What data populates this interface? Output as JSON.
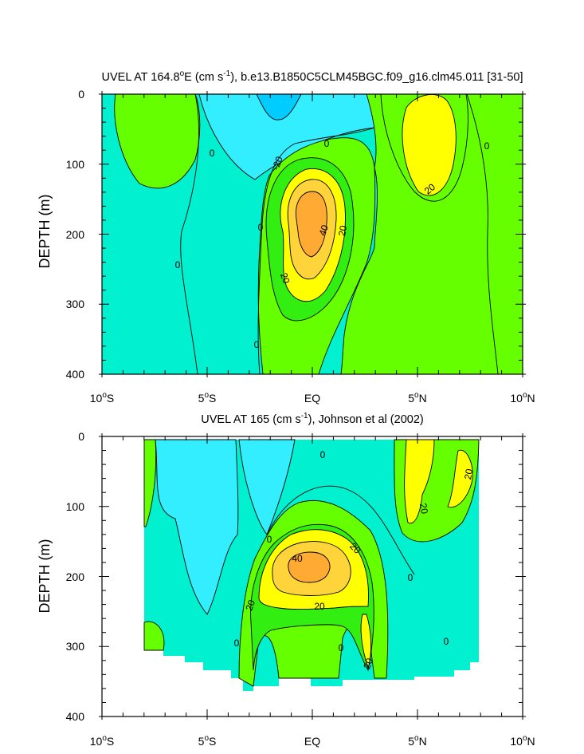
{
  "chart_data": [
    {
      "type": "contour",
      "title_main": "UVEL AT 164.8",
      "title_deg": "o",
      "title_e": "E (cm s",
      "title_sup": "-1",
      "title_rest": "), b.e13.B1850C5CLM45BGC.f09_g16.clm45.011 [31-50]",
      "ylabel": "DEPTH (m)",
      "xlim": [
        -10,
        10
      ],
      "ylim": [
        400,
        0
      ],
      "yticks": [
        "0",
        "100",
        "200",
        "300",
        "400"
      ],
      "xticks": [
        {
          "num": "10",
          "sup": "o",
          "hem": "S"
        },
        {
          "num": "5",
          "sup": "o",
          "hem": "S"
        },
        {
          "num": "EQ",
          "sup": "",
          "hem": ""
        },
        {
          "num": "5",
          "sup": "o",
          "hem": "N"
        },
        {
          "num": "10",
          "sup": "o",
          "hem": "N"
        }
      ],
      "contour_labels": [
        "0",
        "0",
        "0",
        "0",
        "0",
        "0",
        "-20",
        "40",
        "20",
        "20",
        "20"
      ],
      "features": [
        {
          "name": "EUC core",
          "lat": 0,
          "depth": 185,
          "max": 45
        },
        {
          "name": "NECC core",
          "lat": 5,
          "depth": 70,
          "max": 25
        },
        {
          "name": "westward surface",
          "lat": -1.5,
          "depth": 15,
          "min": -25
        }
      ]
    },
    {
      "type": "contour",
      "title_main": "UVEL AT 165 (cm s",
      "title_sup": "-1",
      "title_rest": "), Johnson et al (2002)",
      "ylabel": "DEPTH (m)",
      "xlim": [
        -10,
        10
      ],
      "ylim": [
        400,
        0
      ],
      "yticks": [
        "0",
        "100",
        "200",
        "300",
        "400"
      ],
      "xticks": [
        {
          "num": "10",
          "sup": "o",
          "hem": "S"
        },
        {
          "num": "5",
          "sup": "o",
          "hem": "S"
        },
        {
          "num": "EQ",
          "sup": "",
          "hem": ""
        },
        {
          "num": "5",
          "sup": "o",
          "hem": "N"
        },
        {
          "num": "10",
          "sup": "o",
          "hem": "N"
        }
      ],
      "contour_labels": [
        "0",
        "0",
        "0",
        "0",
        "0",
        "0",
        "40",
        "20",
        "20",
        "20",
        "20",
        "20",
        "20"
      ],
      "features": [
        {
          "name": "EUC core",
          "lat": 0,
          "depth": 185,
          "max": 42
        },
        {
          "name": "NECC",
          "lat": 5,
          "depth": 80,
          "max": 25
        }
      ]
    }
  ],
  "colors": {
    "cyan_dark": "#00ccff",
    "cyan": "#33eeff",
    "teal": "#00f0d0",
    "green_light": "#33ee11",
    "green": "#66ff00",
    "yellow": "#ffff00",
    "gold": "#ffd43a",
    "orange": "#ffaa33"
  }
}
